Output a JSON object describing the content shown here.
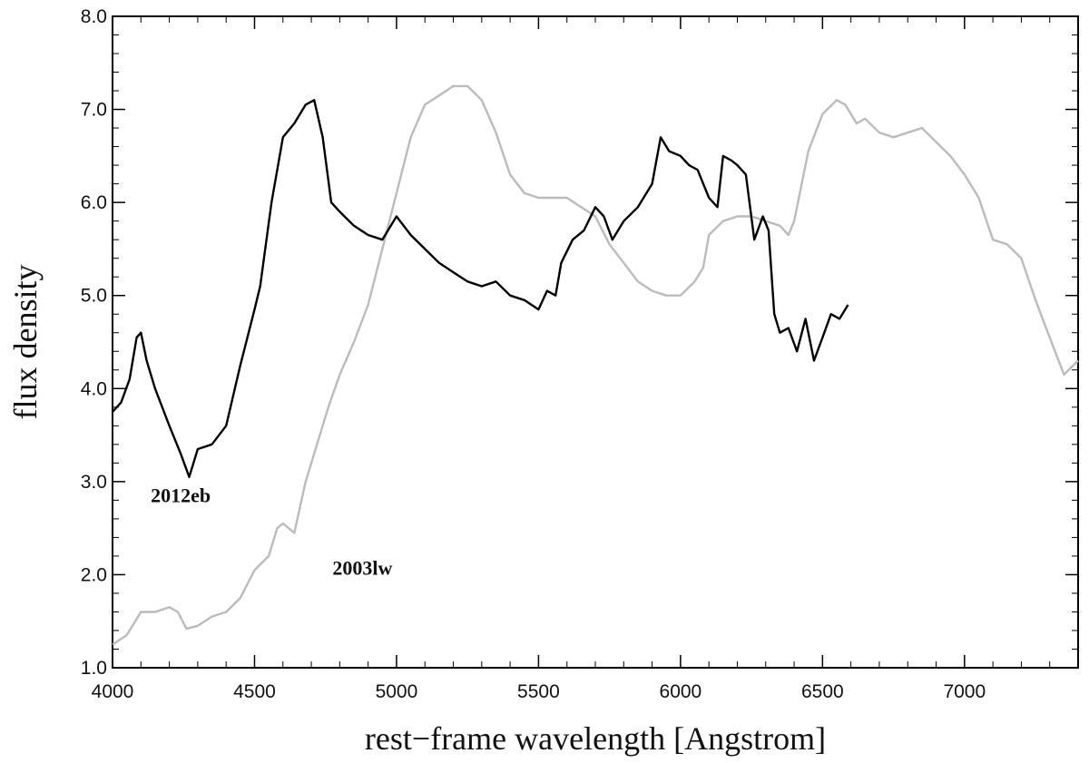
{
  "chart_data": {
    "type": "line",
    "title": "",
    "xlabel": "rest−frame wavelength [Angstrom]",
    "ylabel": "flux density",
    "xlim": [
      4000,
      7400
    ],
    "ylim": [
      1.0,
      8.0
    ],
    "x_ticks": [
      4000,
      4500,
      5000,
      5500,
      6000,
      6500,
      7000
    ],
    "x_tick_labels": [
      "4000",
      "4500",
      "5000",
      "5500",
      "6000",
      "6500",
      "7000"
    ],
    "y_ticks": [
      1.0,
      2.0,
      3.0,
      4.0,
      5.0,
      6.0,
      7.0,
      8.0
    ],
    "y_tick_labels": [
      "1.0",
      "2.0",
      "3.0",
      "4.0",
      "5.0",
      "6.0",
      "7.0",
      "8.0"
    ],
    "grid": false,
    "legend": "none (direct labels)",
    "series": [
      {
        "name": "2012eb",
        "color": "#000000",
        "x": [
          4000,
          4030,
          4060,
          4085,
          4100,
          4120,
          4150,
          4200,
          4240,
          4270,
          4300,
          4350,
          4400,
          4450,
          4500,
          4520,
          4560,
          4600,
          4640,
          4680,
          4710,
          4740,
          4770,
          4800,
          4850,
          4900,
          4950,
          5000,
          5050,
          5100,
          5150,
          5200,
          5250,
          5300,
          5350,
          5400,
          5450,
          5500,
          5530,
          5560,
          5580,
          5620,
          5660,
          5700,
          5730,
          5760,
          5800,
          5850,
          5900,
          5930,
          5960,
          6000,
          6030,
          6060,
          6100,
          6130,
          6150,
          6180,
          6200,
          6230,
          6260,
          6290,
          6310,
          6330,
          6350,
          6380,
          6410,
          6440,
          6470,
          6500,
          6530,
          6560,
          6590
        ],
        "y": [
          3.75,
          3.85,
          4.1,
          4.55,
          4.6,
          4.3,
          4.0,
          3.6,
          3.3,
          3.05,
          3.35,
          3.4,
          3.6,
          4.25,
          4.85,
          5.1,
          6.0,
          6.7,
          6.85,
          7.05,
          7.1,
          6.7,
          6.0,
          5.9,
          5.75,
          5.65,
          5.6,
          5.85,
          5.65,
          5.5,
          5.35,
          5.25,
          5.15,
          5.1,
          5.15,
          5.0,
          4.95,
          4.85,
          5.05,
          5.0,
          5.35,
          5.6,
          5.7,
          5.95,
          5.85,
          5.6,
          5.8,
          5.95,
          6.2,
          6.7,
          6.55,
          6.5,
          6.4,
          6.35,
          6.05,
          5.95,
          6.5,
          6.45,
          6.4,
          6.3,
          5.6,
          5.85,
          5.7,
          4.8,
          4.6,
          4.65,
          4.4,
          4.75,
          4.3,
          4.55,
          4.8,
          4.75,
          4.9
        ]
      },
      {
        "name": "2003lw",
        "color": "#bbbbbb",
        "x": [
          4000,
          4050,
          4100,
          4150,
          4200,
          4230,
          4260,
          4300,
          4350,
          4400,
          4450,
          4500,
          4550,
          4580,
          4600,
          4640,
          4680,
          4720,
          4760,
          4800,
          4850,
          4900,
          4950,
          5000,
          5050,
          5100,
          5150,
          5200,
          5250,
          5300,
          5350,
          5400,
          5450,
          5500,
          5550,
          5600,
          5650,
          5700,
          5750,
          5800,
          5850,
          5900,
          5950,
          6000,
          6050,
          6080,
          6100,
          6150,
          6200,
          6250,
          6300,
          6350,
          6380,
          6400,
          6450,
          6500,
          6550,
          6580,
          6620,
          6650,
          6700,
          6750,
          6800,
          6850,
          6900,
          6950,
          7000,
          7050,
          7100,
          7150,
          7200,
          7250,
          7300,
          7350,
          7400
        ],
        "y": [
          1.25,
          1.35,
          1.6,
          1.6,
          1.65,
          1.6,
          1.42,
          1.45,
          1.55,
          1.6,
          1.75,
          2.05,
          2.2,
          2.5,
          2.55,
          2.45,
          3.0,
          3.4,
          3.8,
          4.15,
          4.5,
          4.9,
          5.5,
          6.1,
          6.7,
          7.05,
          7.15,
          7.25,
          7.25,
          7.1,
          6.75,
          6.3,
          6.1,
          6.05,
          6.05,
          6.05,
          5.95,
          5.85,
          5.55,
          5.35,
          5.15,
          5.05,
          5.0,
          5.0,
          5.15,
          5.3,
          5.65,
          5.8,
          5.85,
          5.85,
          5.8,
          5.75,
          5.65,
          5.8,
          6.55,
          6.95,
          7.1,
          7.05,
          6.85,
          6.9,
          6.75,
          6.7,
          6.75,
          6.8,
          6.65,
          6.5,
          6.3,
          6.05,
          5.6,
          5.55,
          5.4,
          4.95,
          4.55,
          4.15,
          4.3
        ]
      }
    ],
    "annotations": [
      {
        "text": "2012eb",
        "x": 4240,
        "y": 2.78
      },
      {
        "text": "2003lw",
        "x": 4880,
        "y": 2.0
      }
    ]
  }
}
